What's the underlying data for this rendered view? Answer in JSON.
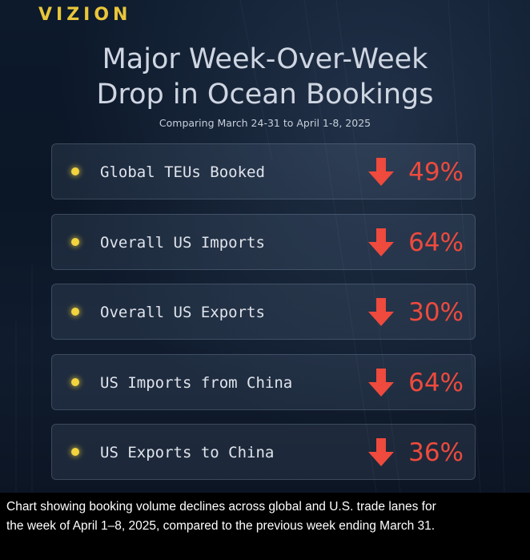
{
  "brand": "VIZION",
  "title": {
    "line1": "Major Week-Over-Week",
    "line2": "Drop in Ocean Bookings"
  },
  "subtitle": "Comparing March 24-31 to April 1-8, 2025",
  "stats": [
    {
      "label": "Global TEUs Booked",
      "value": "49%"
    },
    {
      "label": "Overall US Imports",
      "value": "64%"
    },
    {
      "label": "Overall US Exports",
      "value": "30%"
    },
    {
      "label": "US Imports from China",
      "value": "64%"
    },
    {
      "label": "US Exports to China",
      "value": "36%"
    }
  ],
  "icons": {
    "bullet": "yellow-dot-icon",
    "arrow": "arrow-down-icon"
  },
  "colors": {
    "brand": "#e9c63a",
    "bullet": "#f3d43e",
    "decline": "#ee4a3d",
    "background": "#0d1a2c"
  },
  "caption": {
    "line1": "Chart showing booking volume declines across global and U.S. trade lanes for",
    "line2": "the week of April 1–8, 2025, compared to the previous week ending March 31."
  }
}
